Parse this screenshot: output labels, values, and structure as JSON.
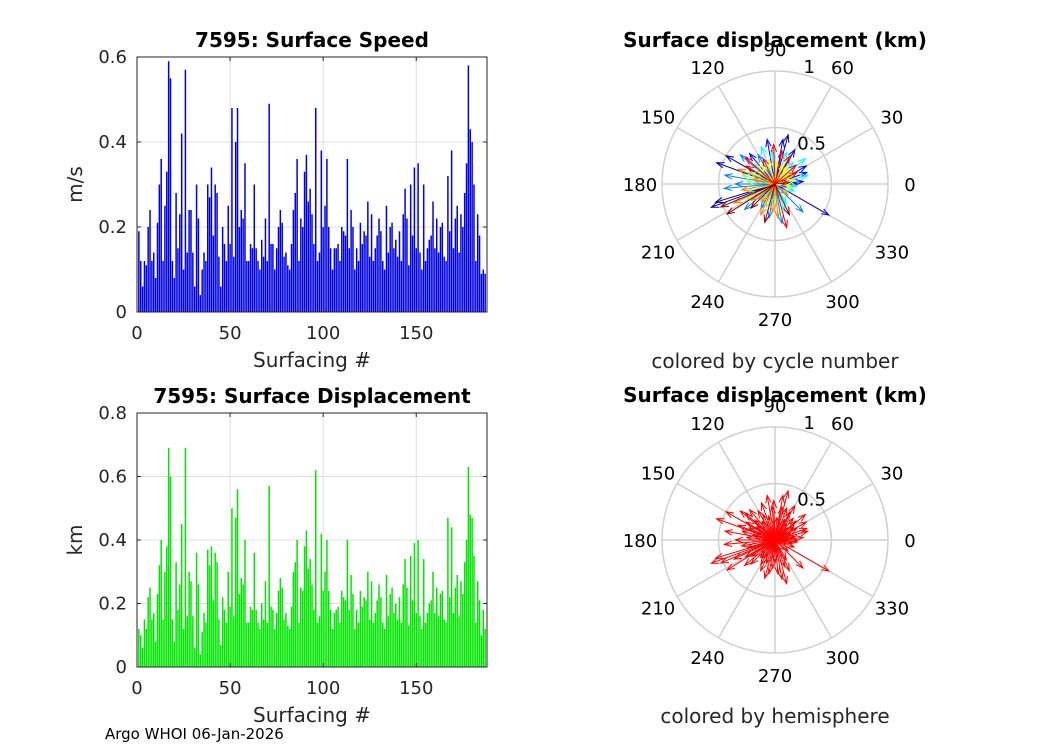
{
  "footer": "Argo WHOI 06-Jan-2026",
  "chart_data": [
    {
      "type": "bar",
      "title": "7595: Surface Speed",
      "xlabel": "Surfacing #",
      "ylabel": "m/s",
      "xlim": [
        0,
        188
      ],
      "ylim": [
        0,
        0.6
      ],
      "xticks": [
        "0",
        "50",
        "100",
        "150"
      ],
      "yticks": [
        "0",
        "0.2",
        "0.4",
        "0.6"
      ],
      "color": "#0000e6",
      "values": [
        0.19,
        0.12,
        0.06,
        0.12,
        0.11,
        0.2,
        0.24,
        0.12,
        0.14,
        0.08,
        0.21,
        0.3,
        0.36,
        0.12,
        0.25,
        0.33,
        0.59,
        0.55,
        0.12,
        0.08,
        0.28,
        0.15,
        0.23,
        0.42,
        0.1,
        0.57,
        0.14,
        0.24,
        0.24,
        0.14,
        0.06,
        0.3,
        0.22,
        0.04,
        0.1,
        0.14,
        0.12,
        0.3,
        0.27,
        0.34,
        0.18,
        0.3,
        0.28,
        0.13,
        0.06,
        0.2,
        0.16,
        0.12,
        0.25,
        0.16,
        0.48,
        0.13,
        0.4,
        0.48,
        0.2,
        0.24,
        0.22,
        0.35,
        0.12,
        0.12,
        0.16,
        0.15,
        0.3,
        0.15,
        0.12,
        0.1,
        0.17,
        0.13,
        0.22,
        0.12,
        0.49,
        0.16,
        0.16,
        0.1,
        0.15,
        0.2,
        0.24,
        0.21,
        0.13,
        0.14,
        0.11,
        0.1,
        0.16,
        0.24,
        0.28,
        0.36,
        0.12,
        0.22,
        0.2,
        0.33,
        0.37,
        0.26,
        0.29,
        0.23,
        0.16,
        0.48,
        0.12,
        0.14,
        0.38,
        0.2,
        0.25,
        0.36,
        0.2,
        0.15,
        0.1,
        0.15,
        0.15,
        0.16,
        0.12,
        0.2,
        0.19,
        0.18,
        0.36,
        0.15,
        0.24,
        0.2,
        0.1,
        0.15,
        0.12,
        0.21,
        0.16,
        0.19,
        0.18,
        0.26,
        0.13,
        0.23,
        0.12,
        0.15,
        0.18,
        0.22,
        0.19,
        0.12,
        0.1,
        0.25,
        0.14,
        0.2,
        0.21,
        0.15,
        0.17,
        0.13,
        0.19,
        0.12,
        0.23,
        0.29,
        0.22,
        0.11,
        0.3,
        0.18,
        0.34,
        0.15,
        0.35,
        0.14,
        0.1,
        0.3,
        0.12,
        0.15,
        0.17,
        0.18,
        0.26,
        0.15,
        0.22,
        0.14,
        0.2,
        0.21,
        0.13,
        0.12,
        0.32,
        0.19,
        0.38,
        0.15,
        0.22,
        0.25,
        0.14,
        0.23,
        0.2,
        0.28,
        0.35,
        0.58,
        0.43,
        0.4,
        0.3,
        0.12,
        0.23,
        0.18,
        0.09,
        0.1,
        0.09
      ]
    },
    {
      "type": "bar",
      "title": "7595: Surface Displacement",
      "xlabel": "Surfacing #",
      "ylabel": "km",
      "xlim": [
        0,
        188
      ],
      "ylim": [
        0,
        0.8
      ],
      "xticks": [
        "0",
        "50",
        "100",
        "150"
      ],
      "yticks": [
        "0",
        "0.2",
        "0.4",
        "0.6",
        "0.8"
      ],
      "color": "#00e600",
      "values": [
        0.12,
        0.1,
        0.06,
        0.15,
        0.12,
        0.22,
        0.25,
        0.15,
        0.17,
        0.08,
        0.23,
        0.32,
        0.4,
        0.15,
        0.3,
        0.38,
        0.69,
        0.6,
        0.15,
        0.08,
        0.33,
        0.18,
        0.26,
        0.45,
        0.12,
        0.69,
        0.16,
        0.3,
        0.27,
        0.16,
        0.06,
        0.36,
        0.26,
        0.04,
        0.11,
        0.17,
        0.14,
        0.37,
        0.32,
        0.38,
        0.21,
        0.36,
        0.33,
        0.15,
        0.07,
        0.22,
        0.18,
        0.14,
        0.3,
        0.19,
        0.5,
        0.16,
        0.47,
        0.56,
        0.23,
        0.28,
        0.26,
        0.4,
        0.14,
        0.14,
        0.19,
        0.18,
        0.36,
        0.18,
        0.14,
        0.12,
        0.2,
        0.15,
        0.27,
        0.14,
        0.57,
        0.19,
        0.18,
        0.12,
        0.17,
        0.24,
        0.28,
        0.25,
        0.15,
        0.17,
        0.13,
        0.12,
        0.19,
        0.3,
        0.33,
        0.4,
        0.14,
        0.25,
        0.24,
        0.38,
        0.43,
        0.31,
        0.34,
        0.26,
        0.18,
        0.62,
        0.14,
        0.16,
        0.42,
        0.24,
        0.3,
        0.4,
        0.24,
        0.18,
        0.12,
        0.17,
        0.18,
        0.19,
        0.14,
        0.24,
        0.22,
        0.21,
        0.4,
        0.18,
        0.29,
        0.23,
        0.12,
        0.18,
        0.14,
        0.24,
        0.19,
        0.22,
        0.21,
        0.3,
        0.15,
        0.27,
        0.14,
        0.17,
        0.21,
        0.26,
        0.22,
        0.14,
        0.12,
        0.29,
        0.16,
        0.23,
        0.25,
        0.17,
        0.2,
        0.15,
        0.22,
        0.14,
        0.26,
        0.34,
        0.25,
        0.13,
        0.35,
        0.21,
        0.39,
        0.17,
        0.4,
        0.16,
        0.12,
        0.34,
        0.14,
        0.17,
        0.2,
        0.21,
        0.3,
        0.17,
        0.25,
        0.16,
        0.23,
        0.24,
        0.15,
        0.14,
        0.47,
        0.22,
        0.44,
        0.17,
        0.25,
        0.29,
        0.16,
        0.27,
        0.23,
        0.33,
        0.4,
        0.63,
        0.48,
        0.47,
        0.35,
        0.14,
        0.27,
        0.21,
        0.1,
        0.18,
        0.12
      ]
    },
    {
      "type": "polar-compass",
      "title": "Surface displacement (km)",
      "caption": "colored by cycle number",
      "rlim": [
        0,
        1
      ],
      "rticks": [
        "0.5",
        "1"
      ],
      "angle_ticks": [
        "0",
        "30",
        "60",
        "90",
        "120",
        "150",
        "180",
        "210",
        "240",
        "270",
        "300",
        "330"
      ],
      "colormap": [
        "#00008f",
        "#0000ff",
        "#0080ff",
        "#00ffff",
        "#80ff80",
        "#ffff00",
        "#ff8000",
        "#ff0000",
        "#800000"
      ],
      "arrows": [
        {
          "angle": 200,
          "r": 0.6
        },
        {
          "angle": 197,
          "r": 0.55
        },
        {
          "angle": 160,
          "r": 0.55
        },
        {
          "angle": 150,
          "r": 0.5
        },
        {
          "angle": 75,
          "r": 0.45
        },
        {
          "angle": 80,
          "r": 0.4
        },
        {
          "angle": 100,
          "r": 0.4
        },
        {
          "angle": 130,
          "r": 0.35
        },
        {
          "angle": 60,
          "r": 0.35
        },
        {
          "angle": 30,
          "r": 0.32
        },
        {
          "angle": 20,
          "r": 0.3
        },
        {
          "angle": 5,
          "r": 0.25
        },
        {
          "angle": 0,
          "r": 0.2
        },
        {
          "angle": 345,
          "r": 0.1
        },
        {
          "angle": 330,
          "r": 0.55
        },
        {
          "angle": 315,
          "r": 0.35
        },
        {
          "angle": 280,
          "r": 0.35
        },
        {
          "angle": 260,
          "r": 0.3
        },
        {
          "angle": 240,
          "r": 0.25
        },
        {
          "angle": 220,
          "r": 0.35
        },
        {
          "angle": 185,
          "r": 0.45
        },
        {
          "angle": 180,
          "r": 0.35
        },
        {
          "angle": 170,
          "r": 0.45
        },
        {
          "angle": 140,
          "r": 0.4
        },
        {
          "angle": 120,
          "r": 0.3
        },
        {
          "angle": 110,
          "r": 0.35
        },
        {
          "angle": 95,
          "r": 0.3
        },
        {
          "angle": 70,
          "r": 0.3
        },
        {
          "angle": 50,
          "r": 0.25
        },
        {
          "angle": 40,
          "r": 0.35
        },
        {
          "angle": 15,
          "r": 0.3
        },
        {
          "angle": 355,
          "r": 0.2
        },
        {
          "angle": 340,
          "r": 0.18
        },
        {
          "angle": 300,
          "r": 0.2
        },
        {
          "angle": 290,
          "r": 0.25
        },
        {
          "angle": 270,
          "r": 0.2
        },
        {
          "angle": 250,
          "r": 0.22
        },
        {
          "angle": 230,
          "r": 0.2
        },
        {
          "angle": 210,
          "r": 0.3
        },
        {
          "angle": 195,
          "r": 0.25
        },
        {
          "angle": 175,
          "r": 0.25
        },
        {
          "angle": 165,
          "r": 0.3
        },
        {
          "angle": 155,
          "r": 0.25
        },
        {
          "angle": 145,
          "r": 0.2
        },
        {
          "angle": 135,
          "r": 0.25
        },
        {
          "angle": 125,
          "r": 0.2
        },
        {
          "angle": 105,
          "r": 0.22
        },
        {
          "angle": 85,
          "r": 0.2
        },
        {
          "angle": 65,
          "r": 0.2
        },
        {
          "angle": 55,
          "r": 0.18
        },
        {
          "angle": 45,
          "r": 0.15
        },
        {
          "angle": 35,
          "r": 0.2
        },
        {
          "angle": 25,
          "r": 0.15
        },
        {
          "angle": 10,
          "r": 0.18
        },
        {
          "angle": 350,
          "r": 0.15
        },
        {
          "angle": 320,
          "r": 0.15
        },
        {
          "angle": 275,
          "r": 0.3
        },
        {
          "angle": 265,
          "r": 0.25
        },
        {
          "angle": 245,
          "r": 0.3
        },
        {
          "angle": 235,
          "r": 0.2
        },
        {
          "angle": 215,
          "r": 0.25
        },
        {
          "angle": 205,
          "r": 0.4
        },
        {
          "angle": 190,
          "r": 0.3
        },
        {
          "angle": 168,
          "r": 0.2
        },
        {
          "angle": 158,
          "r": 0.35
        },
        {
          "angle": 148,
          "r": 0.3
        },
        {
          "angle": 138,
          "r": 0.35
        },
        {
          "angle": 115,
          "r": 0.25
        },
        {
          "angle": 92,
          "r": 0.35
        },
        {
          "angle": 78,
          "r": 0.3
        },
        {
          "angle": 62,
          "r": 0.28
        },
        {
          "angle": 42,
          "r": 0.25
        },
        {
          "angle": 28,
          "r": 0.22
        },
        {
          "angle": 8,
          "r": 0.12
        },
        {
          "angle": 285,
          "r": 0.4
        },
        {
          "angle": 295,
          "r": 0.3
        },
        {
          "angle": 255,
          "r": 0.35
        },
        {
          "angle": 225,
          "r": 0.3
        },
        {
          "angle": 212,
          "r": 0.5
        },
        {
          "angle": 203,
          "r": 0.52
        }
      ]
    },
    {
      "type": "polar-compass",
      "title": "Surface displacement (km)",
      "caption": "colored by hemisphere",
      "rlim": [
        0,
        1
      ],
      "rticks": [
        "0.5",
        "1"
      ],
      "angle_ticks": [
        "0",
        "30",
        "60",
        "90",
        "120",
        "150",
        "180",
        "210",
        "240",
        "270",
        "300",
        "330"
      ],
      "color": "#ff0000",
      "arrows": [
        {
          "angle": 200,
          "r": 0.6
        },
        {
          "angle": 197,
          "r": 0.55
        },
        {
          "angle": 160,
          "r": 0.55
        },
        {
          "angle": 150,
          "r": 0.5
        },
        {
          "angle": 75,
          "r": 0.45
        },
        {
          "angle": 80,
          "r": 0.4
        },
        {
          "angle": 100,
          "r": 0.4
        },
        {
          "angle": 130,
          "r": 0.35
        },
        {
          "angle": 60,
          "r": 0.35
        },
        {
          "angle": 30,
          "r": 0.32
        },
        {
          "angle": 20,
          "r": 0.3
        },
        {
          "angle": 5,
          "r": 0.25
        },
        {
          "angle": 0,
          "r": 0.2
        },
        {
          "angle": 345,
          "r": 0.1
        },
        {
          "angle": 330,
          "r": 0.55
        },
        {
          "angle": 315,
          "r": 0.35
        },
        {
          "angle": 280,
          "r": 0.35
        },
        {
          "angle": 260,
          "r": 0.3
        },
        {
          "angle": 240,
          "r": 0.25
        },
        {
          "angle": 220,
          "r": 0.35
        },
        {
          "angle": 185,
          "r": 0.45
        },
        {
          "angle": 180,
          "r": 0.35
        },
        {
          "angle": 170,
          "r": 0.45
        },
        {
          "angle": 140,
          "r": 0.4
        },
        {
          "angle": 120,
          "r": 0.3
        },
        {
          "angle": 110,
          "r": 0.35
        },
        {
          "angle": 95,
          "r": 0.3
        },
        {
          "angle": 70,
          "r": 0.3
        },
        {
          "angle": 50,
          "r": 0.25
        },
        {
          "angle": 40,
          "r": 0.35
        },
        {
          "angle": 15,
          "r": 0.3
        },
        {
          "angle": 355,
          "r": 0.2
        },
        {
          "angle": 340,
          "r": 0.18
        },
        {
          "angle": 300,
          "r": 0.2
        },
        {
          "angle": 290,
          "r": 0.25
        },
        {
          "angle": 270,
          "r": 0.2
        },
        {
          "angle": 250,
          "r": 0.22
        },
        {
          "angle": 230,
          "r": 0.2
        },
        {
          "angle": 210,
          "r": 0.3
        },
        {
          "angle": 195,
          "r": 0.25
        },
        {
          "angle": 175,
          "r": 0.25
        },
        {
          "angle": 165,
          "r": 0.3
        },
        {
          "angle": 155,
          "r": 0.25
        },
        {
          "angle": 145,
          "r": 0.2
        },
        {
          "angle": 135,
          "r": 0.25
        },
        {
          "angle": 125,
          "r": 0.2
        },
        {
          "angle": 105,
          "r": 0.22
        },
        {
          "angle": 85,
          "r": 0.2
        },
        {
          "angle": 65,
          "r": 0.2
        },
        {
          "angle": 55,
          "r": 0.18
        },
        {
          "angle": 45,
          "r": 0.15
        },
        {
          "angle": 35,
          "r": 0.2
        },
        {
          "angle": 25,
          "r": 0.15
        },
        {
          "angle": 10,
          "r": 0.18
        },
        {
          "angle": 350,
          "r": 0.15
        },
        {
          "angle": 320,
          "r": 0.15
        },
        {
          "angle": 275,
          "r": 0.3
        },
        {
          "angle": 265,
          "r": 0.25
        },
        {
          "angle": 245,
          "r": 0.3
        },
        {
          "angle": 235,
          "r": 0.2
        },
        {
          "angle": 215,
          "r": 0.25
        },
        {
          "angle": 205,
          "r": 0.4
        },
        {
          "angle": 190,
          "r": 0.3
        },
        {
          "angle": 168,
          "r": 0.2
        },
        {
          "angle": 158,
          "r": 0.35
        },
        {
          "angle": 148,
          "r": 0.3
        },
        {
          "angle": 138,
          "r": 0.35
        },
        {
          "angle": 115,
          "r": 0.25
        },
        {
          "angle": 92,
          "r": 0.35
        },
        {
          "angle": 78,
          "r": 0.3
        },
        {
          "angle": 62,
          "r": 0.28
        },
        {
          "angle": 42,
          "r": 0.25
        },
        {
          "angle": 28,
          "r": 0.22
        },
        {
          "angle": 8,
          "r": 0.12
        },
        {
          "angle": 285,
          "r": 0.4
        },
        {
          "angle": 295,
          "r": 0.3
        },
        {
          "angle": 255,
          "r": 0.35
        },
        {
          "angle": 225,
          "r": 0.3
        },
        {
          "angle": 212,
          "r": 0.5
        },
        {
          "angle": 203,
          "r": 0.52
        }
      ]
    }
  ]
}
